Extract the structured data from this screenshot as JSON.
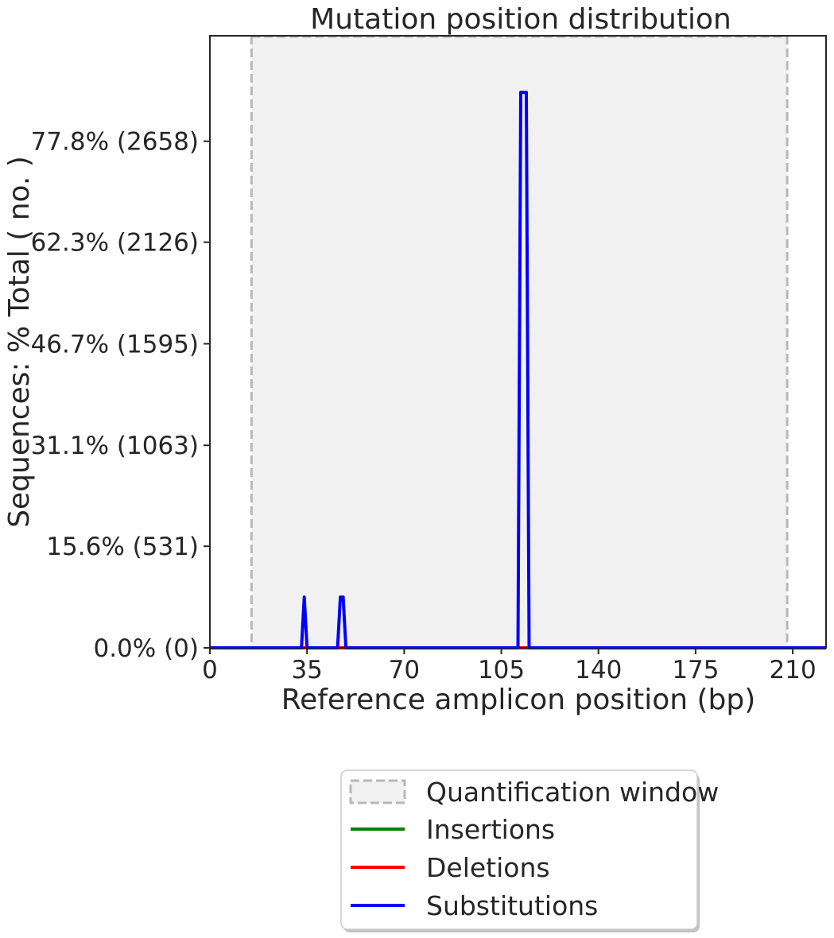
{
  "chart_data": {
    "type": "line",
    "title": "Mutation position distribution",
    "xlabel": "Reference amplicon position (bp)",
    "ylabel": "Sequences: % Total ( no. )",
    "xlim": [
      0,
      222
    ],
    "ylim": [
      0,
      94
    ],
    "x_ticks": [
      0,
      35,
      70,
      105,
      140,
      175,
      210
    ],
    "x_tick_labels": [
      "0",
      "35",
      "70",
      "105",
      "140",
      "175",
      "210"
    ],
    "y_ticks": [
      0,
      15.6,
      31.1,
      46.7,
      62.3,
      77.8
    ],
    "y_tick_labels": [
      "0.0% (0)",
      "15.6% (531)",
      "31.1% (1063)",
      "46.7% (1595)",
      "62.3% (2126)",
      "77.8% (2658)"
    ],
    "quantification_window": [
      15,
      208
    ],
    "grid": false,
    "legend_position": "bottom-center, outside plot",
    "series": [
      {
        "name": "Insertions",
        "color": "#008000",
        "x": [
          0,
          222
        ],
        "y": [
          0,
          0
        ]
      },
      {
        "name": "Deletions",
        "color": "#ff0000",
        "x": [
          0,
          222
        ],
        "y": [
          0,
          0
        ]
      },
      {
        "name": "Substitutions",
        "color": "#0000ff",
        "x": [
          0,
          33,
          34,
          35,
          46,
          47,
          48,
          49,
          111,
          112,
          114,
          115,
          222
        ],
        "y": [
          0,
          0,
          7.8,
          0,
          0,
          7.8,
          7.8,
          0,
          0,
          85.3,
          85.3,
          0,
          0
        ]
      }
    ]
  },
  "legend": {
    "items": [
      {
        "label": "Quantification window",
        "style": "dashed-box",
        "color": "#b8b8b8"
      },
      {
        "label": "Insertions",
        "style": "line",
        "color": "#008000"
      },
      {
        "label": "Deletions",
        "style": "line",
        "color": "#ff0000"
      },
      {
        "label": "Substitutions",
        "style": "line",
        "color": "#0000ff"
      }
    ]
  },
  "colors": {
    "window_fill": "#f1f1f2",
    "window_edge": "#b8b8b8",
    "axis": "#262626"
  }
}
